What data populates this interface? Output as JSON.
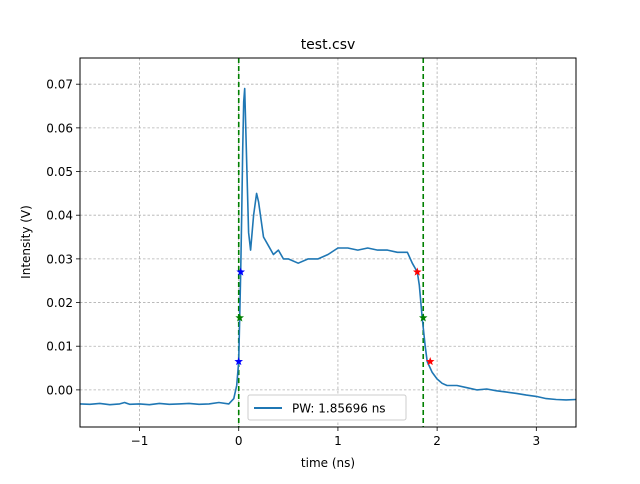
{
  "chart_data": {
    "type": "line",
    "title": "test.csv",
    "xlabel": "time (ns)",
    "ylabel": "Intensity (V)",
    "xlim": [
      -1.6,
      3.4
    ],
    "ylim": [
      -0.0085,
      0.076
    ],
    "xticks": [
      -1,
      0,
      1,
      2,
      3
    ],
    "xtick_labels": [
      "−1",
      "0",
      "1",
      "2",
      "3"
    ],
    "yticks": [
      0.0,
      0.01,
      0.02,
      0.03,
      0.04,
      0.05,
      0.06,
      0.07
    ],
    "ytick_labels": [
      "0.00",
      "0.01",
      "0.02",
      "0.03",
      "0.04",
      "0.05",
      "0.06",
      "0.07"
    ],
    "grid": true,
    "legend_position": "lower-center",
    "series": [
      {
        "name": "PW: 1.85696 ns",
        "color": "#1f77b4",
        "x": [
          -1.6,
          -1.5,
          -1.4,
          -1.3,
          -1.2,
          -1.15,
          -1.1,
          -1.0,
          -0.9,
          -0.8,
          -0.7,
          -0.6,
          -0.5,
          -0.4,
          -0.3,
          -0.2,
          -0.1,
          -0.05,
          -0.02,
          0.0,
          0.01,
          0.02,
          0.03,
          0.04,
          0.05,
          0.06,
          0.08,
          0.1,
          0.12,
          0.15,
          0.18,
          0.2,
          0.25,
          0.3,
          0.35,
          0.4,
          0.45,
          0.5,
          0.6,
          0.7,
          0.8,
          0.9,
          1.0,
          1.1,
          1.2,
          1.3,
          1.4,
          1.5,
          1.6,
          1.7,
          1.75,
          1.8,
          1.82,
          1.85,
          1.88,
          1.9,
          1.95,
          2.0,
          2.05,
          2.1,
          2.2,
          2.3,
          2.4,
          2.5,
          2.6,
          2.7,
          2.8,
          2.9,
          3.0,
          3.1,
          3.2,
          3.3,
          3.4
        ],
        "y": [
          -0.0032,
          -0.0033,
          -0.0031,
          -0.0034,
          -0.0032,
          -0.0029,
          -0.0033,
          -0.0032,
          -0.0034,
          -0.0031,
          -0.0033,
          -0.0032,
          -0.0031,
          -0.0033,
          -0.0032,
          -0.0029,
          -0.0032,
          -0.002,
          0.001,
          0.0065,
          0.0165,
          0.027,
          0.04,
          0.055,
          0.066,
          0.069,
          0.052,
          0.036,
          0.032,
          0.04,
          0.045,
          0.043,
          0.035,
          0.033,
          0.031,
          0.032,
          0.03,
          0.03,
          0.029,
          0.03,
          0.03,
          0.031,
          0.0325,
          0.0325,
          0.032,
          0.0325,
          0.032,
          0.032,
          0.0315,
          0.0315,
          0.029,
          0.027,
          0.024,
          0.0165,
          0.01,
          0.0065,
          0.004,
          0.0025,
          0.0015,
          0.001,
          0.001,
          0.0005,
          0.0,
          0.0002,
          -0.0002,
          -0.0005,
          -0.0008,
          -0.0012,
          -0.0015,
          -0.002,
          -0.0022,
          -0.0023,
          -0.0022
        ]
      }
    ],
    "vlines": [
      {
        "x": 0.0,
        "color": "#008000"
      },
      {
        "x": 1.86,
        "color": "#008000"
      }
    ],
    "markers": [
      {
        "x": 0.02,
        "y": 0.027,
        "color": "#0000ff"
      },
      {
        "x": 0.0,
        "y": 0.0065,
        "color": "#0000ff"
      },
      {
        "x": 0.01,
        "y": 0.0165,
        "color": "#008000"
      },
      {
        "x": 1.86,
        "y": 0.0165,
        "color": "#008000"
      },
      {
        "x": 1.8,
        "y": 0.027,
        "color": "#ff0000"
      },
      {
        "x": 1.93,
        "y": 0.0065,
        "color": "#ff0000"
      }
    ]
  }
}
